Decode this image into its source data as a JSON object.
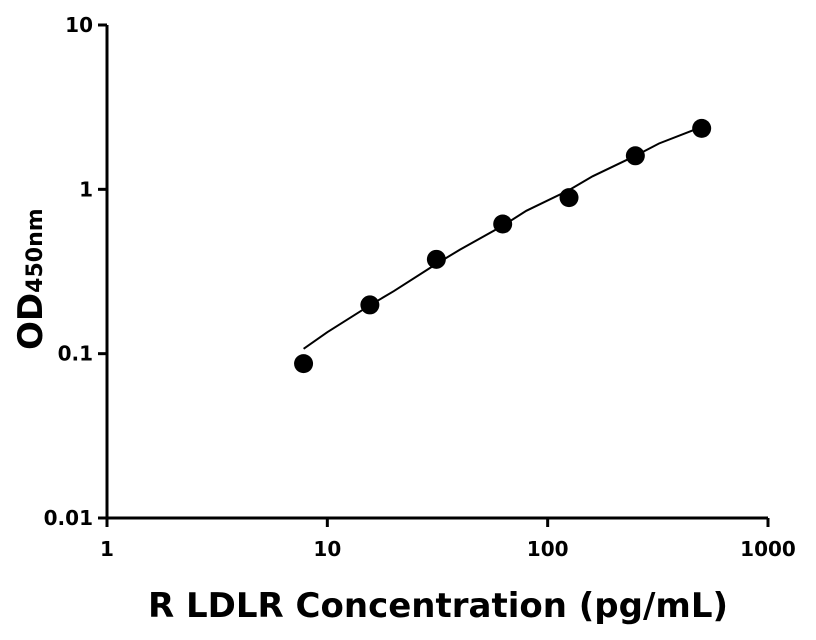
{
  "chart_data": {
    "type": "scatter",
    "xlabel": "R LDLR Concentration (pg/mL)",
    "ylabel_main": "OD",
    "ylabel_sub": "450nm",
    "x_scale": "log",
    "y_scale": "log",
    "xlim": [
      1,
      1000
    ],
    "ylim": [
      0.01,
      10
    ],
    "x_ticks": [
      1,
      10,
      100,
      1000
    ],
    "x_tick_labels": [
      "1",
      "10",
      "100",
      "1000"
    ],
    "y_ticks": [
      0.01,
      0.1,
      1,
      10
    ],
    "y_tick_labels": [
      "0.01",
      "0.1",
      "1",
      "10"
    ],
    "grid": false,
    "series": [
      {
        "x": [
          7.8,
          15.6,
          31.25,
          62.5,
          125,
          250,
          500
        ],
        "y": [
          0.087,
          0.198,
          0.375,
          0.615,
          0.89,
          1.6,
          2.35
        ]
      }
    ],
    "fit_curve": {
      "x": [
        7.8,
        10,
        15.6,
        20,
        31.25,
        40,
        62.5,
        80,
        125,
        160,
        250,
        320,
        500
      ],
      "y": [
        0.107,
        0.135,
        0.197,
        0.24,
        0.352,
        0.43,
        0.6,
        0.74,
        0.99,
        1.2,
        1.6,
        1.9,
        2.4
      ]
    },
    "colors": {
      "marker": "#000000",
      "line": "#000000",
      "axis": "#000000"
    }
  }
}
